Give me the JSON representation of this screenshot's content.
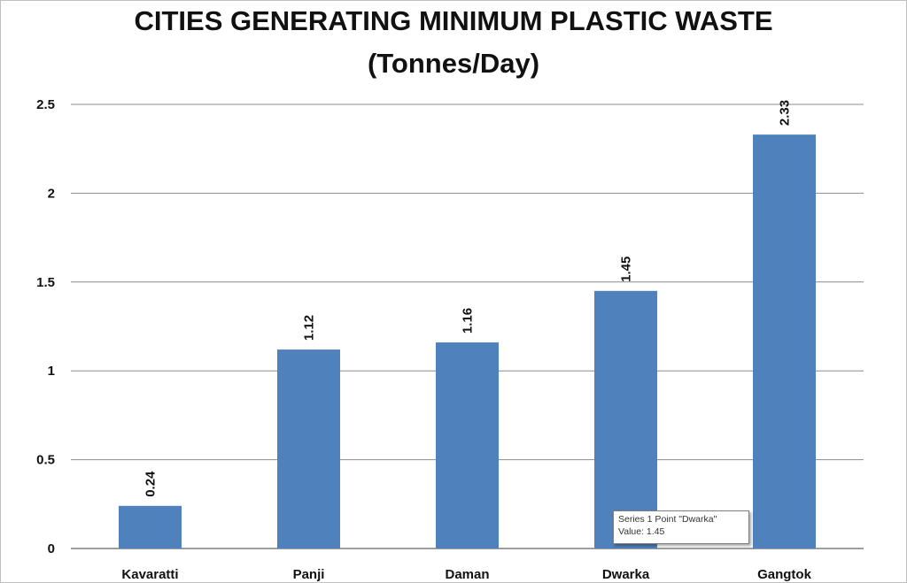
{
  "chart_data": {
    "type": "bar",
    "title": "CITIES GENERATING MINIMUM PLASTIC WASTE",
    "subtitle": "(Tonnes/Day)",
    "categories": [
      "Kavaratti",
      "Panji",
      "Daman",
      "Dwarka",
      "Gangtok"
    ],
    "series": [
      {
        "values": [
          0.24,
          1.12,
          1.16,
          1.45,
          2.33
        ]
      }
    ],
    "data_labels": [
      "0.24",
      "1.12",
      "1.16",
      "1.45",
      "2.33"
    ],
    "ylim": [
      0,
      2.5
    ],
    "yticks": [
      0,
      0.5,
      1,
      1.5,
      2,
      2.5
    ],
    "ytick_labels": [
      "0",
      "0.5",
      "1",
      "1.5",
      "2",
      "2.5"
    ],
    "grid": true,
    "legend": "none",
    "bar_color": "#4f81bd",
    "gridline_color": "#8c8c8c"
  },
  "tooltip": {
    "line1": "Series 1 Point \"Dwarka\"",
    "line2": "Value: 1.45"
  }
}
